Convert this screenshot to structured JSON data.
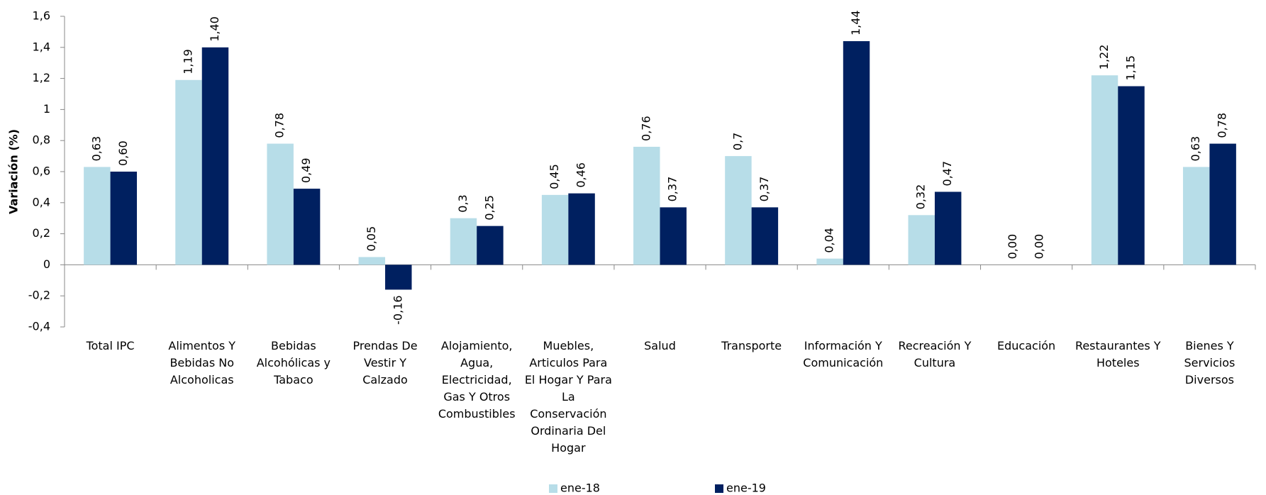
{
  "chart_data": {
    "type": "bar",
    "y_label": "Variación (%)",
    "categories": [
      "Total IPC",
      "Alimentos Y Bebidas No Alcoholicas",
      "Bebidas Alcohólicas y Tabaco",
      "Prendas De Vestir Y Calzado",
      "Alojamiento, Agua, Electricidad, Gas Y Otros Combustibles",
      "Muebles, Articulos Para El Hogar Y Para La Conservación Ordinaria Del Hogar",
      "Salud",
      "Transporte",
      "Información Y Comunicación",
      "Recreación Y Cultura",
      "Educación",
      "Restaurantes Y Hoteles",
      "Bienes Y Servicios Diversos"
    ],
    "series": [
      {
        "name": "ene-18",
        "color": "#b7dde8",
        "values": [
          0.63,
          1.19,
          0.78,
          0.05,
          0.3,
          0.45,
          0.76,
          0.7,
          0.04,
          0.32,
          0.0,
          1.22,
          0.63
        ],
        "value_labels": [
          "0,63",
          "1,19",
          "0,78",
          "0,05",
          "0,3",
          "0,45",
          "0,76",
          "0,7",
          "0,04",
          "0,32",
          "0,00",
          "1,22",
          "0,63"
        ]
      },
      {
        "name": "ene-19",
        "color": "#002060",
        "values": [
          0.6,
          1.4,
          0.49,
          -0.16,
          0.25,
          0.46,
          0.37,
          0.37,
          1.44,
          0.47,
          0.0,
          1.15,
          0.78
        ],
        "value_labels": [
          "0,60",
          "1,40",
          "0,49",
          "-0,16",
          "0,25",
          "0,46",
          "0,37",
          "0,37",
          "1,44",
          "0,47",
          "0,00",
          "1,15",
          "0,78"
        ]
      }
    ],
    "ylim": [
      -0.4,
      1.6
    ],
    "yticks": [
      {
        "value": -0.4,
        "label": "-0,4"
      },
      {
        "value": -0.2,
        "label": "-0,2"
      },
      0,
      {
        "value": 0.2,
        "label": "0,2"
      },
      {
        "value": 0.4,
        "label": "0,4"
      },
      {
        "value": 0.6,
        "label": "0,6"
      },
      {
        "value": 0.8,
        "label": "0,8"
      },
      1,
      {
        "value": 1.2,
        "label": "1,2"
      },
      {
        "value": 1.4,
        "label": "1,4"
      },
      {
        "value": 1.6,
        "label": "1,6"
      }
    ],
    "grid": false
  }
}
